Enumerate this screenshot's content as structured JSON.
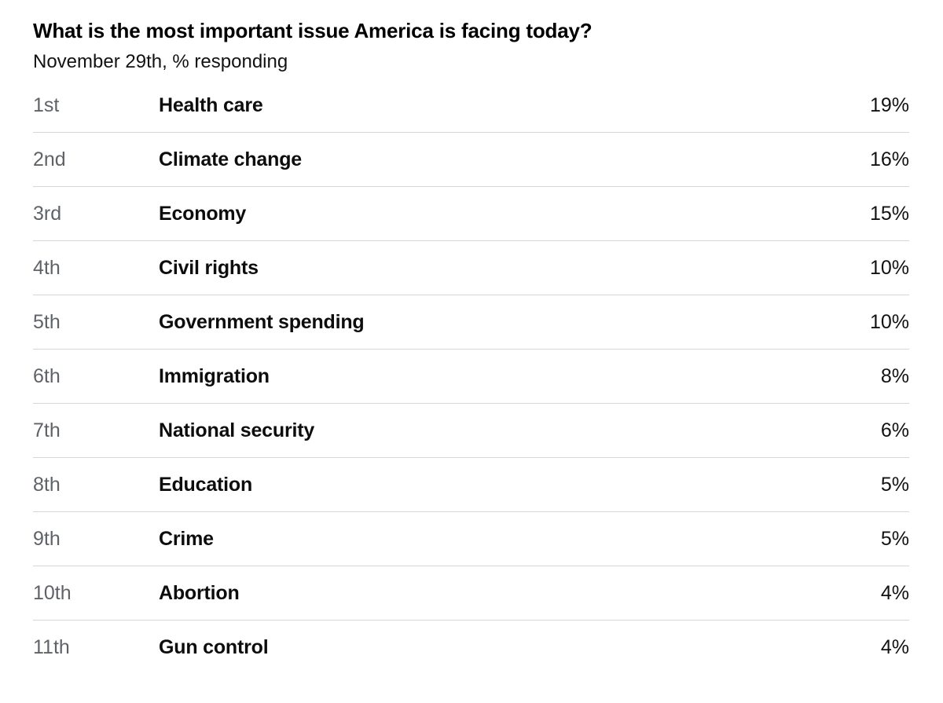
{
  "header": {
    "title": "What is the most important issue America is facing today?",
    "subtitle": "November 29th, % responding"
  },
  "colors": {
    "background": "#ffffff",
    "title_text": "#000000",
    "rank_text": "#5f6368",
    "issue_text": "#0d0d0d",
    "value_text": "#121212",
    "divider": "#d6d6d6"
  },
  "chart_data": {
    "type": "table",
    "title": "What is the most important issue America is facing today?",
    "subtitle": "November 29th, % responding",
    "columns": [
      "rank",
      "issue",
      "percent_responding"
    ],
    "rows": [
      {
        "rank": "1st",
        "label": "Health care",
        "value": "19%"
      },
      {
        "rank": "2nd",
        "label": "Climate change",
        "value": "16%"
      },
      {
        "rank": "3rd",
        "label": "Economy",
        "value": "15%"
      },
      {
        "rank": "4th",
        "label": "Civil rights",
        "value": "10%"
      },
      {
        "rank": "5th",
        "label": "Government spending",
        "value": "10%"
      },
      {
        "rank": "6th",
        "label": "Immigration",
        "value": "8%"
      },
      {
        "rank": "7th",
        "label": "National security",
        "value": "6%"
      },
      {
        "rank": "8th",
        "label": "Education",
        "value": "5%"
      },
      {
        "rank": "9th",
        "label": "Crime",
        "value": "5%"
      },
      {
        "rank": "10th",
        "label": "Abortion",
        "value": "4%"
      },
      {
        "rank": "11th",
        "label": "Gun control",
        "value": "4%"
      }
    ]
  }
}
